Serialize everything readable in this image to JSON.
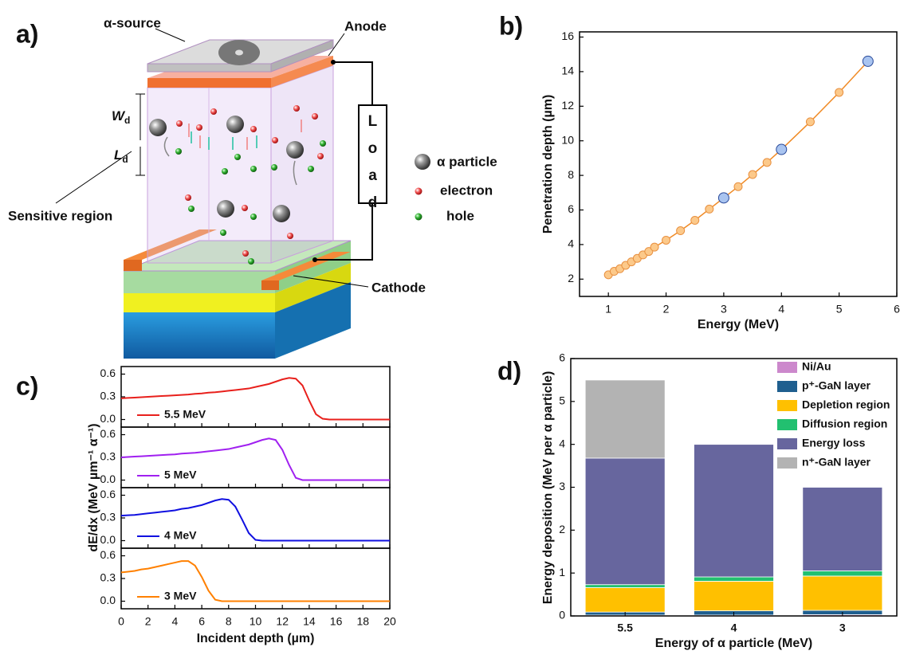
{
  "panel_labels": [
    "a)",
    "b)",
    "c)",
    "d)"
  ],
  "diagram": {
    "source": "α-source",
    "anode": "Anode",
    "depletion_width": {
      "symbol": "W",
      "subscript": "d"
    },
    "diffusion_length": {
      "symbol": "L",
      "subscript": "d"
    },
    "sensitive_region": "Sensitive region",
    "load": "Load",
    "cathode": "Cathode",
    "legend": [
      "α particle",
      "electron",
      "hole"
    ]
  },
  "chart_data": [
    {
      "type": "line",
      "markers": true,
      "xlabel": "Energy (MeV)",
      "ylabel": "Penetration depth (µm)",
      "x": [
        1,
        1.1,
        1.2,
        1.3,
        1.4,
        1.5,
        1.6,
        1.7,
        1.8,
        2,
        2.25,
        2.5,
        2.75,
        3,
        3.25,
        3.5,
        3.75,
        4,
        4.5,
        5,
        5.5
      ],
      "values": [
        2.25,
        2.45,
        2.6,
        2.8,
        3.0,
        3.2,
        3.4,
        3.6,
        3.85,
        4.25,
        4.8,
        5.4,
        6.05,
        6.7,
        7.35,
        8.05,
        8.75,
        9.5,
        11.1,
        12.8,
        14.6
      ],
      "line_color": "#f08a24",
      "marker_colors": [
        "#fcc98a",
        "#fcc98a",
        "#fcc98a",
        "#fcc98a",
        "#fcc98a",
        "#fcc98a",
        "#fcc98a",
        "#fcc98a",
        "#fcc98a",
        "#fcc98a",
        "#fcc98a",
        "#fcc98a",
        "#fcc98a",
        "#a9c4f0",
        "#fcc98a",
        "#fcc98a",
        "#fcc98a",
        "#a9c4f0",
        "#fcc98a",
        "#fcc98a",
        "#a9c4f0"
      ],
      "xlim": [
        0.5,
        6
      ],
      "xticks": [
        1,
        2,
        3,
        4,
        5,
        6
      ],
      "ylim": [
        1,
        16.3
      ],
      "yticks": [
        2,
        4,
        6,
        8,
        10,
        12,
        14,
        16
      ]
    },
    {
      "type": "line",
      "stacked_panels": true,
      "xlabel": "Incident depth (µm)",
      "ylabel": "dE/dx (MeV µm⁻¹ α⁻¹)",
      "x": [
        0,
        0.5,
        1,
        1.5,
        2,
        2.5,
        3,
        3.5,
        4,
        4.5,
        5,
        5.5,
        6,
        6.5,
        7,
        7.5,
        8,
        8.5,
        9,
        9.5,
        10,
        10.5,
        11,
        11.5,
        12,
        12.5,
        13,
        13.5,
        14,
        14.5,
        15,
        15.5,
        16,
        16.5,
        17,
        17.5,
        18,
        18.5,
        19,
        19.5,
        20
      ],
      "series": [
        {
          "name": "5.5 MeV",
          "color": "#e8201c",
          "values": [
            0.28,
            0.285,
            0.29,
            0.295,
            0.3,
            0.305,
            0.31,
            0.315,
            0.32,
            0.325,
            0.33,
            0.34,
            0.345,
            0.355,
            0.36,
            0.37,
            0.38,
            0.39,
            0.4,
            0.41,
            0.43,
            0.45,
            0.47,
            0.5,
            0.53,
            0.55,
            0.54,
            0.45,
            0.25,
            0.07,
            0.01,
            0,
            0,
            0,
            0,
            0,
            0,
            0,
            0,
            0,
            0
          ]
        },
        {
          "name": "5 MeV",
          "color": "#a020f0",
          "values": [
            0.3,
            0.305,
            0.31,
            0.315,
            0.32,
            0.325,
            0.33,
            0.335,
            0.34,
            0.35,
            0.355,
            0.36,
            0.37,
            0.38,
            0.39,
            0.4,
            0.41,
            0.43,
            0.45,
            0.47,
            0.5,
            0.53,
            0.55,
            0.53,
            0.4,
            0.2,
            0.03,
            0,
            0,
            0,
            0,
            0,
            0,
            0,
            0,
            0,
            0,
            0,
            0,
            0,
            0
          ]
        },
        {
          "name": "4 MeV",
          "color": "#1010e0",
          "values": [
            0.33,
            0.335,
            0.34,
            0.35,
            0.36,
            0.37,
            0.38,
            0.39,
            0.4,
            0.42,
            0.43,
            0.45,
            0.47,
            0.5,
            0.53,
            0.55,
            0.54,
            0.45,
            0.28,
            0.1,
            0.01,
            0,
            0,
            0,
            0,
            0,
            0,
            0,
            0,
            0,
            0,
            0,
            0,
            0,
            0,
            0,
            0,
            0,
            0,
            0,
            0
          ]
        },
        {
          "name": "3 MeV",
          "color": "#ff8000",
          "values": [
            0.38,
            0.39,
            0.4,
            0.42,
            0.43,
            0.45,
            0.47,
            0.49,
            0.51,
            0.53,
            0.53,
            0.47,
            0.32,
            0.14,
            0.02,
            0,
            0,
            0,
            0,
            0,
            0,
            0,
            0,
            0,
            0,
            0,
            0,
            0,
            0,
            0,
            0,
            0,
            0,
            0,
            0,
            0,
            0,
            0,
            0,
            0,
            0
          ]
        }
      ],
      "xlim": [
        0,
        20
      ],
      "xticks": [
        0,
        2,
        4,
        6,
        8,
        10,
        12,
        14,
        16,
        18,
        20
      ],
      "ylim": [
        -0.1,
        0.7
      ],
      "yticks": [
        {
          "value": 0,
          "label": "0.0"
        },
        0.3,
        0.6
      ]
    },
    {
      "type": "bar",
      "stacked": true,
      "xlabel": "Energy of α particle (MeV)",
      "ylabel": "Energy deposition (MeV per α particle)",
      "categories": [
        "5.5",
        "4",
        "3"
      ],
      "series": [
        {
          "name": "Ni/Au",
          "color": "#cc88cc",
          "values": [
            0.02,
            0.02,
            0.03
          ]
        },
        {
          "name": "p⁺-GaN layer",
          "color": "#1f5f8f",
          "values": [
            0.07,
            0.1,
            0.1
          ]
        },
        {
          "name": "Depletion region",
          "color": "#ffc000",
          "values": [
            0.57,
            0.69,
            0.8
          ]
        },
        {
          "name": "Diffusion region",
          "color": "#22c070",
          "values": [
            0.07,
            0.1,
            0.12
          ]
        },
        {
          "name": "Energy loss",
          "color": "#67669e",
          "values": [
            2.95,
            3.09,
            1.95
          ]
        },
        {
          "name": "n⁺-GaN layer",
          "color": "#b3b3b3",
          "values": [
            1.82,
            0,
            0
          ]
        }
      ],
      "ylim": [
        0,
        6
      ],
      "yticks": [
        0,
        1,
        2,
        3,
        4,
        5,
        6
      ],
      "legend": "upper-right"
    }
  ]
}
